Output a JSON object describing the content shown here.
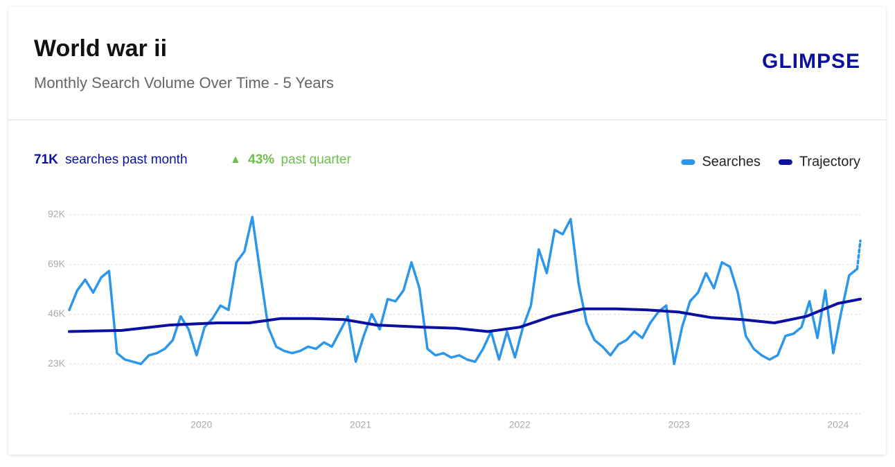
{
  "header": {
    "title": "World war ii",
    "subtitle": "Monthly Search Volume Over Time - 5 Years",
    "logo": "GLIMPSE"
  },
  "stats": {
    "month_value": "71K",
    "month_text": "searches past month",
    "arrow": "▲",
    "quarter_value": "43%",
    "quarter_text": "past quarter"
  },
  "chart_data": {
    "type": "line",
    "xlim": [
      2019.17,
      2024.14
    ],
    "xticks": [
      2020,
      2021,
      2022,
      2023,
      2024
    ],
    "ylim": [
      0,
      92000
    ],
    "yticks": [
      {
        "value": 23000,
        "label": "23K"
      },
      {
        "value": 46000,
        "label": "46K"
      },
      {
        "value": 69000,
        "label": "69K"
      },
      {
        "value": 92000,
        "label": "92K"
      }
    ],
    "grid": true,
    "legend": "top-right",
    "series": [
      {
        "name": "Searches",
        "color": "#2b96ea",
        "dashed_last": true,
        "x": [
          2019.17,
          2019.22,
          2019.27,
          2019.32,
          2019.37,
          2019.42,
          2019.47,
          2019.52,
          2019.57,
          2019.62,
          2019.67,
          2019.72,
          2019.77,
          2019.82,
          2019.87,
          2019.92,
          2019.97,
          2020.02,
          2020.07,
          2020.12,
          2020.17,
          2020.22,
          2020.27,
          2020.32,
          2020.37,
          2020.42,
          2020.47,
          2020.52,
          2020.57,
          2020.62,
          2020.67,
          2020.72,
          2020.77,
          2020.82,
          2020.87,
          2020.92,
          2020.97,
          2021.02,
          2021.07,
          2021.12,
          2021.17,
          2021.22,
          2021.27,
          2021.32,
          2021.37,
          2021.42,
          2021.47,
          2021.52,
          2021.57,
          2021.62,
          2021.67,
          2021.72,
          2021.77,
          2021.82,
          2021.87,
          2021.92,
          2021.97,
          2022.02,
          2022.07,
          2022.12,
          2022.17,
          2022.22,
          2022.27,
          2022.32,
          2022.37,
          2022.42,
          2022.47,
          2022.52,
          2022.57,
          2022.62,
          2022.67,
          2022.72,
          2022.77,
          2022.82,
          2022.87,
          2022.92,
          2022.97,
          2023.02,
          2023.07,
          2023.12,
          2023.17,
          2023.22,
          2023.27,
          2023.32,
          2023.37,
          2023.42,
          2023.47,
          2023.52,
          2023.57,
          2023.62,
          2023.67,
          2023.72,
          2023.77,
          2023.82,
          2023.87,
          2023.92,
          2023.97,
          2024.02,
          2024.07,
          2024.12,
          2024.14
        ],
        "values": [
          48000,
          57000,
          62000,
          56000,
          63000,
          66000,
          28000,
          25000,
          24000,
          23000,
          27000,
          28000,
          30000,
          34000,
          45000,
          39000,
          27000,
          40000,
          44000,
          50000,
          48000,
          70000,
          75000,
          91000,
          65000,
          40000,
          31000,
          29000,
          28000,
          29000,
          31000,
          30000,
          33000,
          31000,
          38000,
          45000,
          24000,
          36000,
          46000,
          39000,
          53000,
          52000,
          57000,
          70000,
          58000,
          30000,
          27000,
          28000,
          26000,
          27000,
          25000,
          24000,
          30000,
          38000,
          25000,
          38000,
          26000,
          40000,
          50000,
          76000,
          65000,
          85000,
          83000,
          90000,
          60000,
          42000,
          34000,
          31000,
          27000,
          32000,
          34000,
          38000,
          35000,
          42000,
          47000,
          50000,
          23000,
          40000,
          52000,
          56000,
          65000,
          58000,
          70000,
          68000,
          56000,
          36000,
          30000,
          27000,
          25000,
          27000,
          36000,
          37000,
          40000,
          52000,
          35000,
          57000,
          28000,
          47000,
          64000,
          67000,
          80000
        ]
      },
      {
        "name": "Trajectory",
        "color": "#0b10a3",
        "x": [
          2019.17,
          2019.5,
          2019.8,
          2020.1,
          2020.3,
          2020.5,
          2020.7,
          2020.9,
          2021.1,
          2021.4,
          2021.6,
          2021.8,
          2022.0,
          2022.2,
          2022.4,
          2022.6,
          2022.8,
          2023.0,
          2023.2,
          2023.4,
          2023.6,
          2023.8,
          2024.0,
          2024.14
        ],
        "values": [
          38000,
          38500,
          41000,
          42000,
          42000,
          44000,
          44000,
          43500,
          41000,
          40000,
          39500,
          38000,
          40000,
          45000,
          48500,
          48500,
          48000,
          47000,
          44500,
          43500,
          42000,
          45000,
          51000,
          53000
        ]
      }
    ]
  }
}
